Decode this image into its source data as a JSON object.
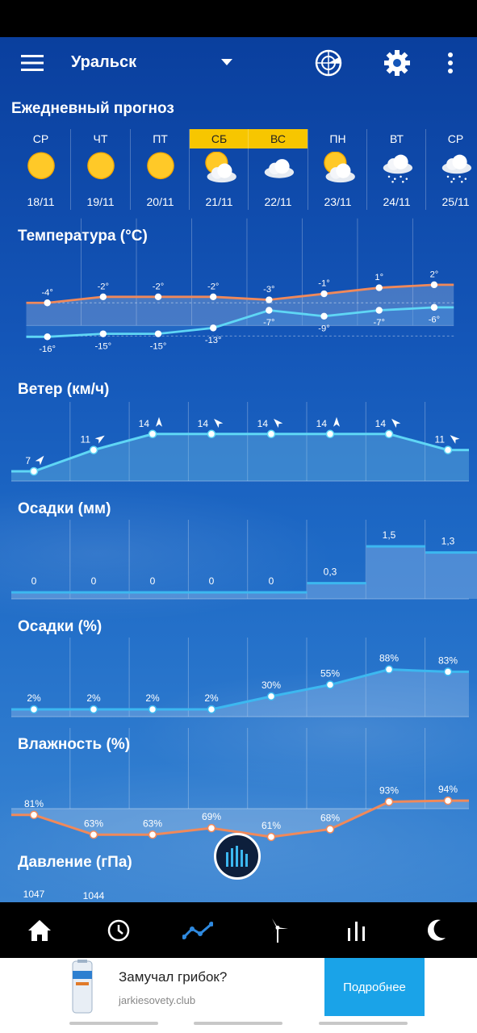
{
  "header": {
    "city": "Уральск",
    "menu_icon": "hamburger-menu-icon",
    "radar_icon": "radar-icon",
    "settings_icon": "gear-icon",
    "more_icon": "more-vertical-icon"
  },
  "daily": {
    "title": "Ежедневный прогноз",
    "days": [
      {
        "name": "СР",
        "date": "18/11",
        "icon": "sun-icon",
        "weekend": false
      },
      {
        "name": "ЧТ",
        "date": "19/11",
        "icon": "sun-icon",
        "weekend": false
      },
      {
        "name": "ПТ",
        "date": "20/11",
        "icon": "sun-icon",
        "weekend": false
      },
      {
        "name": "СБ",
        "date": "21/11",
        "icon": "partly-cloudy-icon",
        "weekend": true
      },
      {
        "name": "ВС",
        "date": "22/11",
        "icon": "cloud-icon",
        "weekend": true
      },
      {
        "name": "ПН",
        "date": "23/11",
        "icon": "partly-cloudy-icon",
        "weekend": false
      },
      {
        "name": "ВТ",
        "date": "24/11",
        "icon": "snow-cloud-icon",
        "weekend": false
      },
      {
        "name": "СР",
        "date": "25/11",
        "icon": "snow-cloud-icon",
        "weekend": false
      }
    ]
  },
  "temperature": {
    "title": "Температура (°C)",
    "max": [
      -4,
      -2,
      -2,
      -2,
      -3,
      -1,
      1,
      2
    ],
    "min": [
      -16,
      -15,
      -15,
      -13,
      -7,
      -9,
      -7,
      -6
    ],
    "max_labels": [
      "-4°",
      "-2°",
      "-2°",
      "-2°",
      "-3°",
      "-1°",
      "1°",
      "2°"
    ],
    "min_labels": [
      "-16°",
      "-15°",
      "-15°",
      "-13°",
      "-7°",
      "-9°",
      "-7°",
      "-6°"
    ],
    "max_color": "#f0895a",
    "min_color": "#5fd6f5"
  },
  "wind": {
    "title": "Ветер (км/ч)",
    "values": [
      7,
      11,
      14,
      14,
      14,
      14,
      14,
      11
    ],
    "labels": [
      "7",
      "11",
      "14",
      "14",
      "14",
      "14",
      "14",
      "11"
    ],
    "direction_icons": [
      "wind-arrow-icon",
      "wind-arrow-icon",
      "wind-arrow-icon",
      "wind-arrow-icon",
      "wind-arrow-icon",
      "wind-arrow-icon",
      "wind-arrow-icon",
      "wind-arrow-icon"
    ]
  },
  "precip_mm": {
    "title": "Осадки (мм)",
    "values": [
      0,
      0,
      0,
      0,
      0,
      0.3,
      1.5,
      1.3
    ],
    "labels": [
      "0",
      "0",
      "0",
      "0",
      "0",
      "0,3",
      "1,5",
      "1,3"
    ]
  },
  "precip_pct": {
    "title": "Осадки (%)",
    "values": [
      2,
      2,
      2,
      2,
      30,
      55,
      88,
      83
    ],
    "labels": [
      "2%",
      "2%",
      "2%",
      "2%",
      "30%",
      "55%",
      "88%",
      "83%"
    ]
  },
  "humidity": {
    "title": "Влажность (%)",
    "values": [
      81,
      63,
      63,
      69,
      61,
      68,
      93,
      94
    ],
    "labels": [
      "81%",
      "63%",
      "63%",
      "69%",
      "61%",
      "68%",
      "93%",
      "94%"
    ],
    "color": "#f0895a"
  },
  "pressure": {
    "title": "Давление (гПа)",
    "labels": [
      "1047",
      "1044"
    ]
  },
  "fab_icon": "bar-chart-icon",
  "nav": [
    {
      "name": "nav-home",
      "icon": "home-icon"
    },
    {
      "name": "nav-hourly",
      "icon": "clock-icon"
    },
    {
      "name": "nav-graph",
      "icon": "trend-line-icon",
      "active": true
    },
    {
      "name": "nav-wind",
      "icon": "wind-turbine-icon"
    },
    {
      "name": "nav-stats",
      "icon": "bar-chart-icon"
    },
    {
      "name": "nav-moon",
      "icon": "moon-icon"
    }
  ],
  "ad": {
    "title": "Замучал грибок?",
    "url": "jarkiesovety.club",
    "button": "Подробнее"
  },
  "colors": {
    "accent": "#3cb8f0",
    "weekend": "#f7c600",
    "ad_button": "#1aa3e8"
  }
}
